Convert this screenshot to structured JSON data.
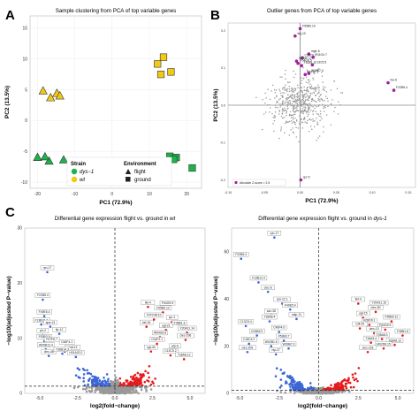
{
  "panels": {
    "A": "A",
    "B": "B",
    "C": "C"
  },
  "chart_data": [
    {
      "id": "A",
      "type": "scatter",
      "title": "Sample clustering from PCA of top variable genes",
      "xlabel": "PC1 (72.9%)",
      "ylabel": "PC2 (13.5%)",
      "xlim": [
        -22,
        24
      ],
      "ylim": [
        -11,
        17
      ],
      "xticks": [
        "-20",
        "-10",
        "0",
        "10",
        "20"
      ],
      "yticks": [
        "-10",
        "-5",
        "0",
        "5",
        "10",
        "15"
      ],
      "xtick_values": [
        -20,
        -10,
        0,
        10,
        20
      ],
      "ytick_values": [
        -10,
        -5,
        0,
        5,
        10,
        15
      ],
      "points": [
        {
          "x": -18.5,
          "y": 4.8,
          "strain": "wt",
          "env": "flight"
        },
        {
          "x": -16.5,
          "y": 3.7,
          "strain": "wt",
          "env": "flight"
        },
        {
          "x": -14.8,
          "y": 4.4,
          "strain": "wt",
          "env": "flight"
        },
        {
          "x": -14.0,
          "y": 4.0,
          "strain": "wt",
          "env": "flight"
        },
        {
          "x": 13.8,
          "y": 10.3,
          "strain": "wt",
          "env": "ground"
        },
        {
          "x": 13.1,
          "y": 7.5,
          "strain": "wt",
          "env": "ground"
        },
        {
          "x": 15.8,
          "y": 7.9,
          "strain": "wt",
          "env": "ground"
        },
        {
          "x": 12.2,
          "y": 9.2,
          "strain": "wt",
          "env": "ground"
        },
        {
          "x": -20.0,
          "y": -6.0,
          "strain": "dys-1",
          "env": "flight"
        },
        {
          "x": -16.9,
          "y": -6.6,
          "strain": "dys-1",
          "env": "flight"
        },
        {
          "x": -13.0,
          "y": -6.4,
          "strain": "dys-1",
          "env": "flight"
        },
        {
          "x": -18.0,
          "y": -5.9,
          "strain": "dys-1",
          "env": "flight"
        },
        {
          "x": 15.5,
          "y": -5.8,
          "strain": "dys-1",
          "env": "ground"
        },
        {
          "x": 17.2,
          "y": -6.0,
          "strain": "dys-1",
          "env": "ground"
        },
        {
          "x": 21.5,
          "y": -7.7,
          "strain": "dys-1",
          "env": "ground"
        },
        {
          "x": 16.5,
          "y": -6.3,
          "strain": "dys-1",
          "env": "ground"
        }
      ],
      "colors": {
        "dys-1": "#1db34a",
        "wt": "#f2c915"
      },
      "legend": {
        "strain_title": "Strain",
        "strain_items": [
          "dys−1",
          "wt"
        ],
        "env_title": "Environment",
        "env_items": [
          "flight",
          "ground"
        ],
        "placement": "bottom"
      }
    },
    {
      "id": "B",
      "type": "scatter",
      "title": "Outlier genes from PCA of top variable genes",
      "xlabel": "PC1 (72.9%)",
      "ylabel": "PC2 (13.5%)",
      "xlim": [
        -0.1,
        0.16
      ],
      "ylim": [
        -0.22,
        0.22
      ],
      "xticks": [
        "-0.10",
        "-0.05",
        "0.00",
        "0.05",
        "0.10",
        "0.15"
      ],
      "yticks": [
        "-0.2",
        "-0.1",
        "0.0",
        "0.1",
        "0.2"
      ],
      "xtick_values": [
        -0.1,
        -0.05,
        0.0,
        0.05,
        0.1,
        0.15
      ],
      "ytick_values": [
        -0.2,
        -0.1,
        0.0,
        0.1,
        0.2
      ],
      "outliers": [
        {
          "x": 0.0,
          "y": 0.205,
          "label": "F55B9.10"
        },
        {
          "x": -0.007,
          "y": 0.185,
          "label": "dnj-10"
        },
        {
          "x": 0.012,
          "y": 0.137,
          "label": "mgtr-5"
        },
        {
          "x": 0.018,
          "y": 0.128,
          "label": "F41G4.7"
        },
        {
          "x": 0.003,
          "y": 0.127,
          "label": "C30C6.2"
        },
        {
          "x": -0.005,
          "y": 0.118,
          "label": "W09B7.2"
        },
        {
          "x": -0.003,
          "y": 0.112,
          "label": "F54G9.5"
        },
        {
          "x": 0.002,
          "y": 0.106,
          "label": "F52B1.1"
        },
        {
          "x": 0.017,
          "y": 0.108,
          "label": "C13C5.5"
        },
        {
          "x": 0.012,
          "y": 0.085,
          "label": "W09B7.3"
        },
        {
          "x": 0.007,
          "y": 0.082,
          "label": "F57B7.1"
        },
        {
          "x": 0.122,
          "y": 0.06,
          "label": "fce-6"
        },
        {
          "x": 0.13,
          "y": 0.04,
          "label": "F22B5.4"
        },
        {
          "x": 0.001,
          "y": -0.2,
          "label": "cpr-5"
        }
      ],
      "legend": {
        "text": "Absolute Z-score > 2.5",
        "color": "#a020a0",
        "placement": "bottom-left"
      }
    },
    {
      "id": "C1",
      "type": "scatter",
      "title": "Differential gene expression flight vs. ground in wt",
      "title_prefix": "Differential gene expression flight vs. ground in ",
      "title_italic": "wt",
      "xlabel": "log2(fold−change)",
      "ylabel": "−log10(adjusted P−value)",
      "xlim": [
        -6,
        6
      ],
      "ylim": [
        0,
        30
      ],
      "xticks": [
        "-5.0",
        "-2.5",
        "0.0",
        "2.5",
        "5.0"
      ],
      "xtick_values": [
        -5,
        -2.5,
        0,
        2.5,
        5
      ],
      "threshold_y": 1.3,
      "labeled_genes": [
        {
          "x": -4.5,
          "y": 22.0,
          "label": "rpn-17"
        },
        {
          "x": -4.8,
          "y": 17.0,
          "label": "F22B5.4"
        },
        {
          "x": -4.7,
          "y": 14.0,
          "label": "F49E5.4"
        },
        {
          "x": -4.9,
          "y": 12.5,
          "label": "F13B12.4"
        },
        {
          "x": -4.3,
          "y": 12.1,
          "label": "apa-13"
        },
        {
          "x": -4.8,
          "y": 10.6,
          "label": "ptr-4"
        },
        {
          "x": -4.7,
          "y": 9.5,
          "label": "F53B3.9"
        },
        {
          "x": -4.2,
          "y": 9.0,
          "label": "F07F6.7"
        },
        {
          "x": -4.6,
          "y": 8.0,
          "label": "W09B12.4"
        },
        {
          "x": -4.4,
          "y": 6.8,
          "label": "clec-48"
        },
        {
          "x": -3.7,
          "y": 10.8,
          "label": "flp-12"
        },
        {
          "x": -3.2,
          "y": 8.5,
          "label": "C46F4.1"
        },
        {
          "x": -2.8,
          "y": 7.6,
          "label": "cutl-12"
        },
        {
          "x": -3.5,
          "y": 7.2,
          "label": "Y38B1A.3"
        },
        {
          "x": -2.6,
          "y": 6.6,
          "label": "H01A20.2"
        },
        {
          "x": 2.2,
          "y": 15.7,
          "label": "ilkl-4"
        },
        {
          "x": 3.5,
          "y": 15.6,
          "label": "F54G9.5"
        },
        {
          "x": 3.2,
          "y": 14.7,
          "label": "F55B9.12"
        },
        {
          "x": 2.6,
          "y": 13.4,
          "label": "F47C48.10"
        },
        {
          "x": 3.8,
          "y": 13.0,
          "label": "lyc-1"
        },
        {
          "x": 2.1,
          "y": 12.1,
          "label": "kel-16"
        },
        {
          "x": 4.3,
          "y": 12.0,
          "label": "F38B1.6"
        },
        {
          "x": 3.4,
          "y": 11.5,
          "label": "ugt-21"
        },
        {
          "x": 3.0,
          "y": 10.2,
          "label": "W04G5.8"
        },
        {
          "x": 2.8,
          "y": 9.0,
          "label": "C04F2.1"
        },
        {
          "x": 4.8,
          "y": 11.0,
          "label": "Y20A11.14"
        },
        {
          "x": 4.0,
          "y": 7.8,
          "label": "pfp-6"
        },
        {
          "x": 2.4,
          "y": 7.6,
          "label": "ugt-44"
        },
        {
          "x": 4.7,
          "y": 9.7,
          "label": "clec-196"
        },
        {
          "x": 3.7,
          "y": 6.9,
          "label": "C13C5.2"
        },
        {
          "x": 4.6,
          "y": 6.2,
          "label": "T28A8.12"
        }
      ]
    },
    {
      "id": "C2",
      "type": "scatter",
      "title": "Differential gene expression flight vs. ground in dys-1",
      "title_prefix": "Differential gene expression flight vs. ground in ",
      "title_italic": "dys-1",
      "xlabel": "log2(fold−change)",
      "ylabel": "−log10(adjusted P−value)",
      "xlim": [
        -5.5,
        6
      ],
      "ylim": [
        0,
        70
      ],
      "xticks": [
        "-5.0",
        "-2.5",
        "0.0",
        "2.5",
        "5.0"
      ],
      "xtick_values": [
        -5,
        -2.5,
        0,
        2.5,
        5
      ],
      "threshold_y": 1.3,
      "labeled_genes": [
        {
          "x": -2.8,
          "y": 66.0,
          "label": "rpn-17"
        },
        {
          "x": -4.9,
          "y": 57.0,
          "label": "F22B5.4"
        },
        {
          "x": -3.8,
          "y": 47.0,
          "label": "F13B12.4"
        },
        {
          "x": -3.2,
          "y": 43.0,
          "label": "clec-6"
        },
        {
          "x": -2.3,
          "y": 38.0,
          "label": "rpn-12.1"
        },
        {
          "x": -1.8,
          "y": 35.5,
          "label": "F49E5.4"
        },
        {
          "x": -3.0,
          "y": 33.0,
          "label": "sdz-38"
        },
        {
          "x": -1.4,
          "y": 31.5,
          "label": "catp-11"
        },
        {
          "x": -3.1,
          "y": 30.5,
          "label": "T28A8.4"
        },
        {
          "x": -4.6,
          "y": 28.5,
          "label": "C13C5.4"
        },
        {
          "x": -2.5,
          "y": 26.0,
          "label": "C46F4.6"
        },
        {
          "x": -3.9,
          "y": 24.5,
          "label": "C03B3.9"
        },
        {
          "x": -2.2,
          "y": 22.3,
          "label": "F53B3.7"
        },
        {
          "x": -4.4,
          "y": 21.0,
          "label": "C18C4.2"
        },
        {
          "x": -3.0,
          "y": 20.0,
          "label": "W02B1.6"
        },
        {
          "x": -1.9,
          "y": 19.0,
          "label": "W09B7.3"
        },
        {
          "x": -4.5,
          "y": 17.5,
          "label": "clec-209"
        },
        {
          "x": -2.7,
          "y": 16.5,
          "label": "nlp-27"
        },
        {
          "x": 2.5,
          "y": 38.0,
          "label": "ilkl-4"
        },
        {
          "x": 3.8,
          "y": 36.5,
          "label": "Y20A11.16"
        },
        {
          "x": 3.6,
          "y": 34.5,
          "label": "clec-50"
        },
        {
          "x": 2.8,
          "y": 32.0,
          "label": "ugt-15"
        },
        {
          "x": 4.6,
          "y": 30.5,
          "label": "F55B9.12"
        },
        {
          "x": 3.2,
          "y": 29.0,
          "label": "K09D9.1"
        },
        {
          "x": 2.6,
          "y": 27.5,
          "label": "cutl-20"
        },
        {
          "x": 4.2,
          "y": 27.0,
          "label": "F54G9.5"
        },
        {
          "x": 3.5,
          "y": 25.5,
          "label": "clec-13"
        },
        {
          "x": 5.3,
          "y": 24.5,
          "label": "F38B1.6"
        },
        {
          "x": 4.0,
          "y": 23.0,
          "label": "T05A8.3"
        },
        {
          "x": 3.3,
          "y": 21.5,
          "label": "T16A9.4"
        },
        {
          "x": 4.8,
          "y": 20.5,
          "label": "T28A8.12"
        },
        {
          "x": 4.1,
          "y": 19.0,
          "label": "M02D8.15"
        },
        {
          "x": 3.1,
          "y": 17.5,
          "label": "clec-218"
        }
      ]
    }
  ]
}
